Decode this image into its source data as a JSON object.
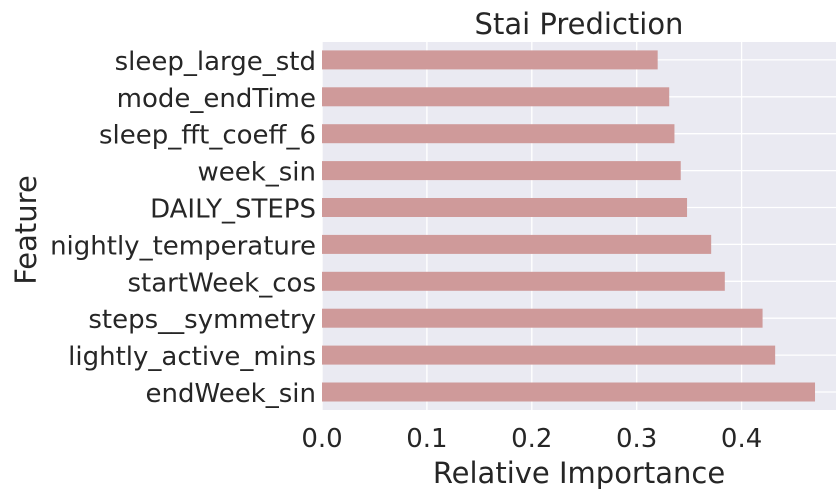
{
  "chart_data": {
    "type": "bar",
    "orientation": "horizontal",
    "title": "Stai Prediction",
    "xlabel": "Relative Importance",
    "ylabel": "Feature",
    "categories": [
      "endWeek_sin",
      "lightly_active_mins",
      "steps__symmetry",
      "startWeek_cos",
      "nightly_temperature",
      "DAILY_STEPS",
      "week_sin",
      "sleep_fft_coeff_6",
      "mode_endTime",
      "sleep_large_std"
    ],
    "values": [
      0.47,
      0.432,
      0.42,
      0.384,
      0.371,
      0.348,
      0.342,
      0.336,
      0.331,
      0.32
    ],
    "xlim": [
      0.0,
      0.49
    ],
    "xticks": [
      "0.0",
      "0.1",
      "0.2",
      "0.3",
      "0.4"
    ],
    "grid": true,
    "colors": {
      "bar": "#cf9a9a",
      "plot_background": "#eaeaf2",
      "grid": "#ffffff"
    }
  }
}
